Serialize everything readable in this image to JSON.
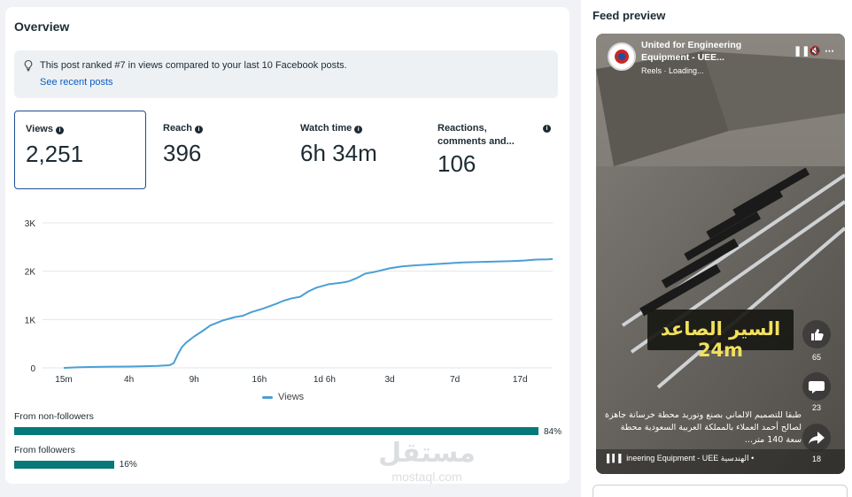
{
  "overview": {
    "title": "Overview",
    "notice_text": "This post ranked #7 in views compared to your last 10 Facebook posts.",
    "notice_link": "See recent posts"
  },
  "metrics": [
    {
      "label": "Views",
      "value": "2,251"
    },
    {
      "label": "Reach",
      "value": "396"
    },
    {
      "label": "Watch time",
      "value": "6h 34m"
    },
    {
      "label": "Reactions, comments and...",
      "value": "106"
    }
  ],
  "chart_data": {
    "type": "line",
    "title": "",
    "xlabel": "",
    "ylabel": "",
    "ylim": [
      0,
      3000
    ],
    "y_ticks": [
      "0",
      "1K",
      "2K",
      "3K"
    ],
    "x_ticks": [
      "15m",
      "4h",
      "9h",
      "16h",
      "1d 6h",
      "3d",
      "7d",
      "17d"
    ],
    "series": [
      {
        "name": "Views",
        "color": "#4b9fd5",
        "points": [
          [
            0.0,
            0
          ],
          [
            0.4,
            15
          ],
          [
            0.8,
            20
          ],
          [
            1.2,
            25
          ],
          [
            1.6,
            28
          ],
          [
            2.0,
            35
          ],
          [
            2.3,
            40
          ],
          [
            2.6,
            55
          ],
          [
            2.7,
            100
          ],
          [
            2.8,
            280
          ],
          [
            2.9,
            430
          ],
          [
            3.0,
            520
          ],
          [
            3.2,
            650
          ],
          [
            3.4,
            760
          ],
          [
            3.6,
            880
          ],
          [
            3.9,
            980
          ],
          [
            4.2,
            1050
          ],
          [
            4.4,
            1080
          ],
          [
            4.6,
            1150
          ],
          [
            4.9,
            1230
          ],
          [
            5.2,
            1320
          ],
          [
            5.4,
            1390
          ],
          [
            5.6,
            1440
          ],
          [
            5.8,
            1470
          ],
          [
            6.0,
            1580
          ],
          [
            6.2,
            1660
          ],
          [
            6.5,
            1730
          ],
          [
            6.8,
            1760
          ],
          [
            7.0,
            1790
          ],
          [
            7.2,
            1860
          ],
          [
            7.4,
            1950
          ],
          [
            7.6,
            1980
          ],
          [
            7.8,
            2020
          ],
          [
            8.0,
            2060
          ],
          [
            8.3,
            2100
          ],
          [
            8.6,
            2120
          ],
          [
            9.0,
            2140
          ],
          [
            9.4,
            2160
          ],
          [
            9.8,
            2180
          ],
          [
            10.2,
            2190
          ],
          [
            10.6,
            2200
          ],
          [
            11.0,
            2210
          ],
          [
            11.3,
            2220
          ],
          [
            11.6,
            2240
          ],
          [
            11.9,
            2245
          ],
          [
            12.0,
            2251
          ]
        ],
        "tick_positions": [
          0,
          1.6,
          3.2,
          4.8,
          6.4,
          8.0,
          9.6,
          11.2
        ]
      }
    ],
    "legend": "Views",
    "legend_position": "bottom",
    "grid": true
  },
  "audience": {
    "non_followers_label": "From non-followers",
    "non_followers_pct": "84%",
    "non_followers_value": 0.84,
    "followers_label": "From followers",
    "followers_pct": "16%",
    "followers_value": 0.16,
    "bar_color": "#07787a"
  },
  "feed": {
    "title": "Feed preview",
    "page_name": "United for Engineering Equipment - UEE...",
    "reels_text": "Reels · Loading...",
    "banner_text": "السير الصاعد 24m",
    "caption": "طبقا للتصميم الالماني بصنع وتوريد محطة خرسانة جاهزة لصالح أحمد العملاء بالمملكة العربية السعودية محطة سعة 140 متر...",
    "audio_text": "ineering Equipment - UEE الهندسية •",
    "likes": "65",
    "comments": "23",
    "shares": "18"
  },
  "watermark": {
    "text_ar": "مستقل",
    "text_en": "mostaql.com"
  }
}
